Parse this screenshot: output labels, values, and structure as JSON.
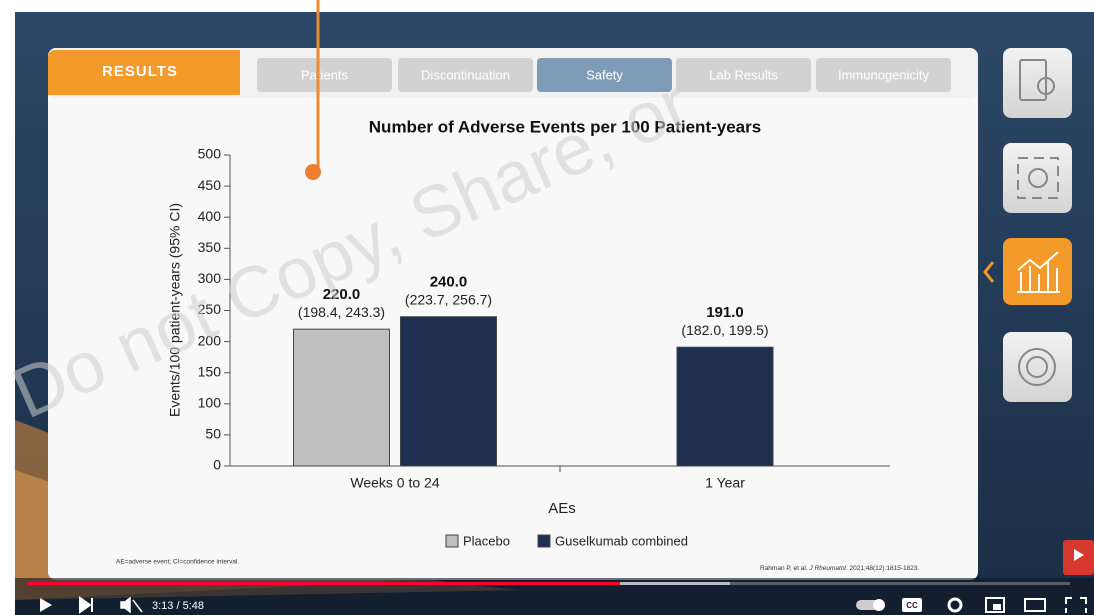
{
  "header": {
    "section": "RESULTS",
    "tabs": [
      "Patients",
      "Discontinuation",
      "Safety",
      "Lab Results",
      "Immunogenicity"
    ],
    "active_tab_index": 2
  },
  "watermark": "Do not Copy, Share, or",
  "chart_data": {
    "type": "bar",
    "title": "Number of Adverse Events per 100 Patient-years",
    "categories": [
      "Weeks 0 to 24",
      "1 Year"
    ],
    "series": [
      {
        "name": "Placebo",
        "color": "#c0c0c0",
        "values": [
          220,
          null
        ],
        "value_labels": [
          "220.0",
          null
        ],
        "ci_labels": [
          "(198.4, 243.3)",
          null
        ]
      },
      {
        "name": "Guselkumab combined",
        "color": "#1f2f4f",
        "values": [
          240,
          191
        ],
        "value_labels": [
          "240.0",
          "191.0"
        ],
        "ci_labels": [
          "(223.7, 256.7)",
          "(182.0, 199.5)"
        ]
      }
    ],
    "xlabel": "AEs",
    "ylabel": "Events/100 patient-years (95% CI)",
    "ylim": [
      0,
      500
    ],
    "yticks": [
      0,
      50,
      100,
      150,
      200,
      250,
      300,
      350,
      400,
      450,
      500
    ]
  },
  "footnote": "AE=adverse event; CI=confidence interval.",
  "reference": [
    "Rahman P, et al. ",
    "J Rheumatol",
    ". 2021;48(12):1815-1823."
  ],
  "player": {
    "time": "3:13 / 5:48",
    "cc": "CC"
  }
}
